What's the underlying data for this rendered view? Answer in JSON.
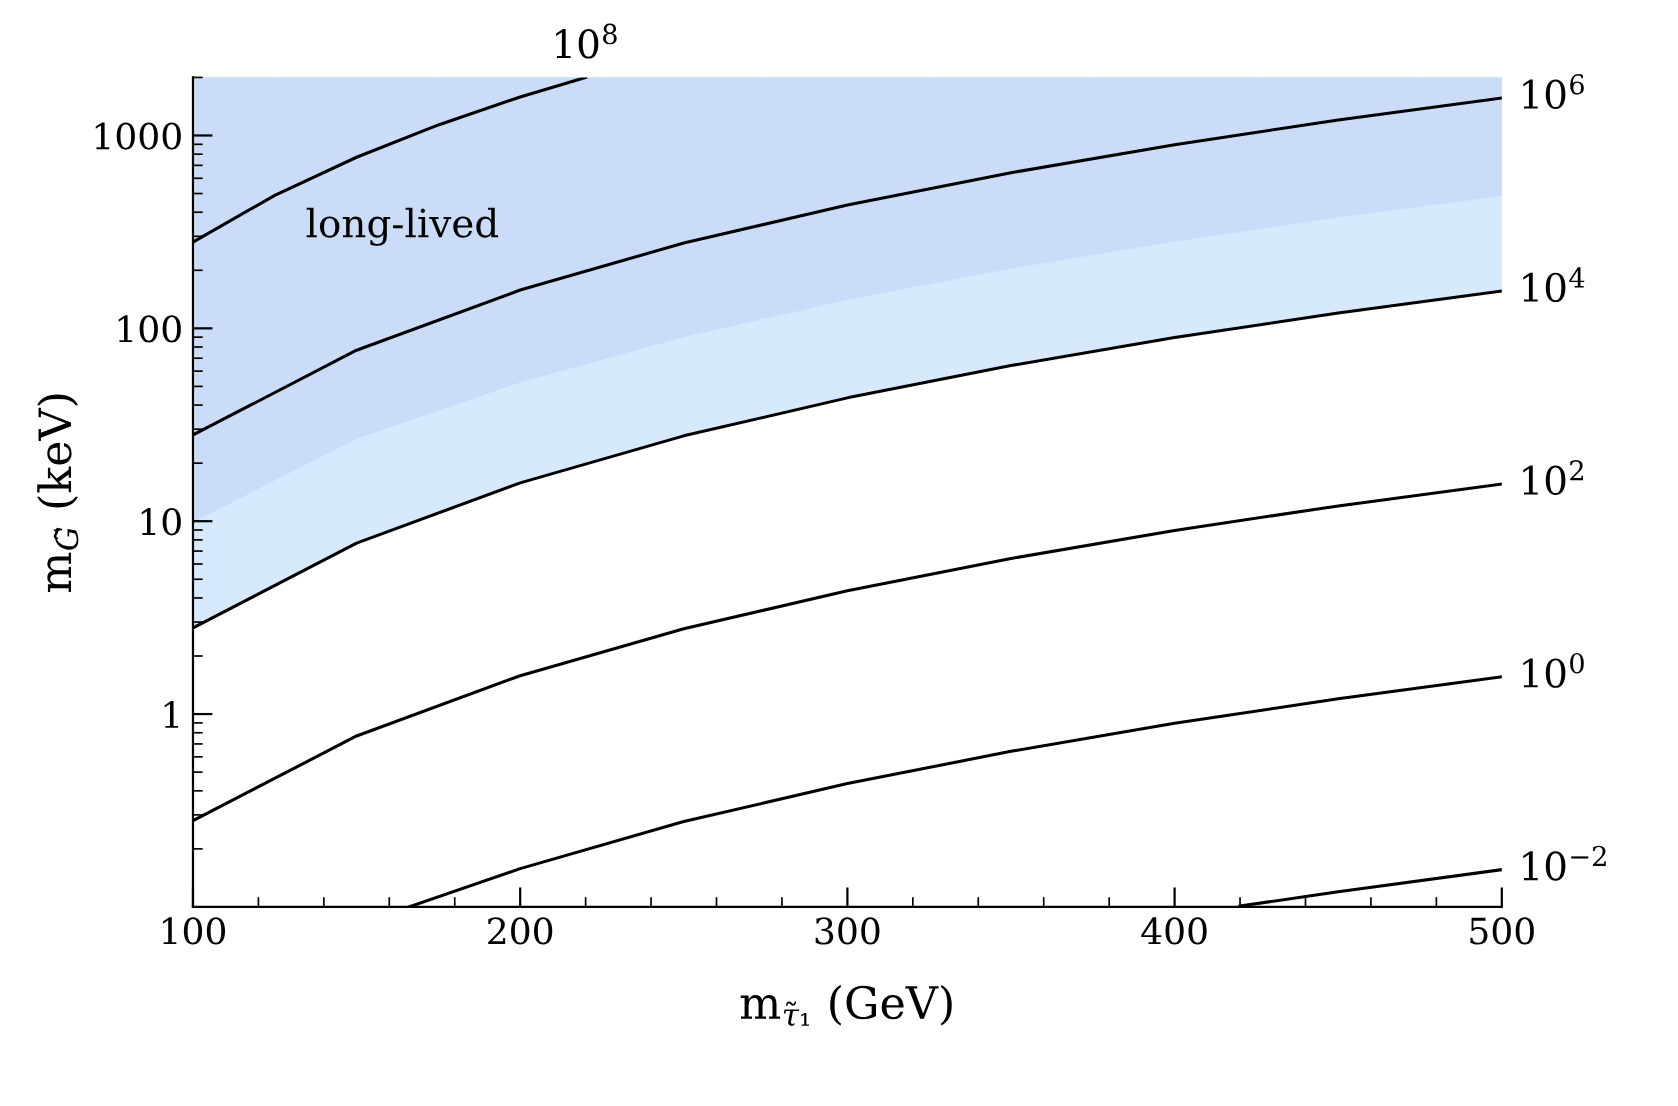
{
  "chart_data": {
    "type": "line",
    "xlabel": "m$_{τ̃₁}$ (GeV)",
    "ylabel": "m$_{G̃}$ (keV)",
    "log": "y",
    "xlim": [
      100,
      500
    ],
    "ylim": [
      0.1,
      2000
    ],
    "xticks": [
      100,
      200,
      300,
      400,
      500
    ],
    "yticks": [
      1,
      10,
      100,
      1000
    ],
    "grid": false,
    "legend": false,
    "series": [
      {
        "name": "10$^{8}$",
        "color": "#000000",
        "x": [
          100,
          125,
          150,
          175,
          200,
          220
        ],
        "values": [
          280,
          489,
          771,
          1134,
          1584,
          2000
        ]
      },
      {
        "name": "10$^{6}$",
        "color": "#000000",
        "colors": [
          "#cadcf8",
          "#cadcf8",
          "#cadcf8",
          "#cadcf8",
          "#cadcf8",
          "#cadcf8",
          "#cadcf8",
          "#cadcf8",
          "#cadcf8"
        ],
        "x": [
          100,
          150,
          200,
          250,
          300,
          350,
          400,
          450,
          500
        ],
        "values": [
          28,
          77,
          158,
          277,
          436,
          641,
          896,
          1202,
          1565
        ],
        "lower": [
          10,
          27,
          53,
          91,
          142,
          206,
          285,
          380,
          490
        ],
        "upper": [
          2000,
          2000,
          2000,
          2000,
          2000,
          2000,
          2000,
          2000,
          2000
        ]
      },
      {
        "name": "10$^{4}$",
        "color": "#000000",
        "colors": [
          "#d6e9fd",
          "#d6e9fd",
          "#d6e9fd",
          "#d6e9fd",
          "#d6e9fd",
          "#d6e9fd",
          "#d6e9fd",
          "#d6e9fd",
          "#d6e9fd"
        ],
        "x": [
          100,
          150,
          200,
          250,
          300,
          350,
          400,
          450,
          500
        ],
        "values": [
          2.8,
          7.7,
          15.8,
          27.7,
          43.6,
          64.1,
          89.6,
          120,
          156
        ],
        "lower": [
          2.8,
          7.7,
          15.8,
          27.7,
          43.6,
          64.1,
          89.6,
          120,
          156
        ],
        "upper": [
          2000,
          2000,
          2000,
          2000,
          2000,
          2000,
          2000,
          2000,
          2000
        ]
      },
      {
        "name": "10$^{2}$",
        "color": "#000000",
        "x": [
          100,
          150,
          200,
          250,
          300,
          350,
          400,
          450,
          500
        ],
        "values": [
          0.28,
          0.77,
          1.58,
          2.77,
          4.36,
          6.41,
          8.96,
          12.0,
          15.6
        ]
      },
      {
        "name": "10$^{0}$",
        "color": "#000000",
        "x": [
          166,
          200,
          250,
          300,
          350,
          400,
          450,
          500
        ],
        "values": [
          0.1,
          0.158,
          0.277,
          0.436,
          0.641,
          0.896,
          1.2,
          1.56
        ]
      },
      {
        "name": "10$^{−2}$",
        "color": "#000000",
        "x": [
          420,
          450,
          500
        ],
        "values": [
          0.101,
          0.12,
          0.156
        ]
      }
    ],
    "annotations": [
      "long-lived"
    ]
  }
}
